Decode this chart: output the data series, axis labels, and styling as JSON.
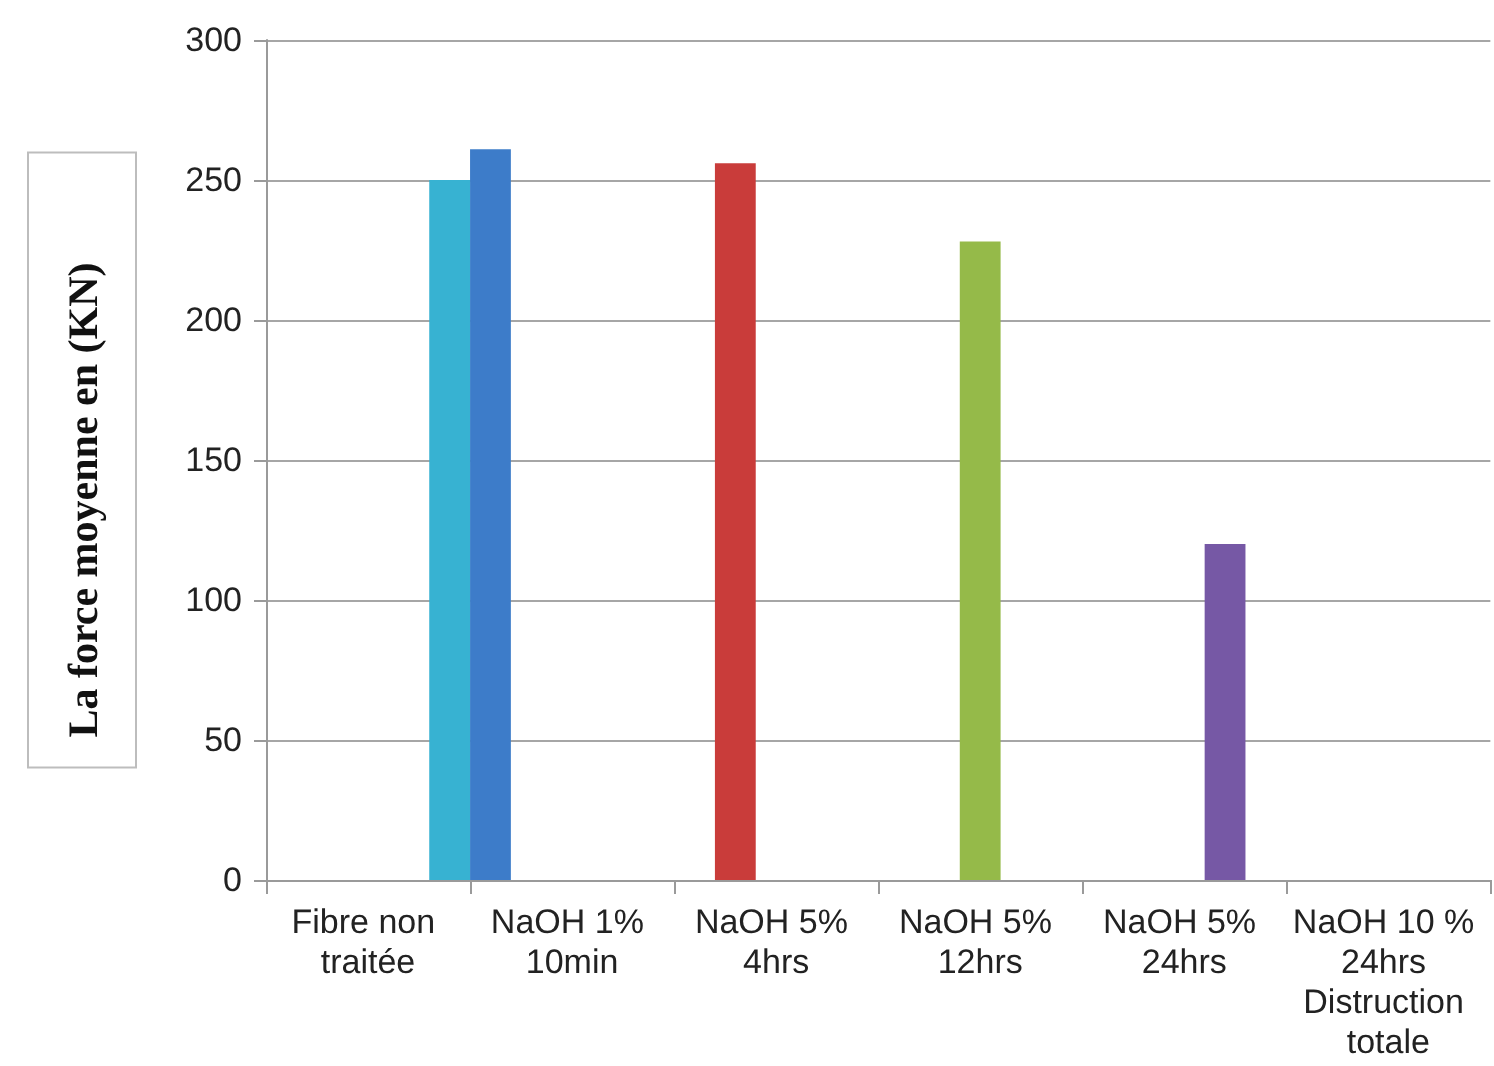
{
  "chart_data": {
    "type": "bar",
    "ylabel": "La force moyenne en (KN)",
    "categories": [
      "Fibre non traitée",
      "NaOH 1% 10min",
      "NaOH 5% 4hrs",
      "NaOH 5% 12hrs",
      "NaOH 5% 24hrs",
      "NaOH 10 % 24hrs Distruction totale"
    ],
    "series": [
      {
        "color": "#3d7cc9",
        "values": [
          null,
          261,
          null,
          null,
          null,
          null
        ]
      },
      {
        "color": "#c93c3a",
        "values": [
          null,
          null,
          256,
          null,
          null,
          null
        ]
      },
      {
        "color": "#95ba49",
        "values": [
          null,
          null,
          null,
          228,
          null,
          null
        ]
      },
      {
        "color": "#7658a5",
        "values": [
          null,
          null,
          null,
          null,
          120,
          null
        ]
      },
      {
        "color": "#37b2d2",
        "values": [
          250,
          null,
          null,
          null,
          null,
          null
        ]
      }
    ],
    "ylim": [
      0,
      300
    ],
    "yticks": [
      0,
      50,
      100,
      150,
      200,
      250,
      300
    ],
    "grid": "y"
  }
}
